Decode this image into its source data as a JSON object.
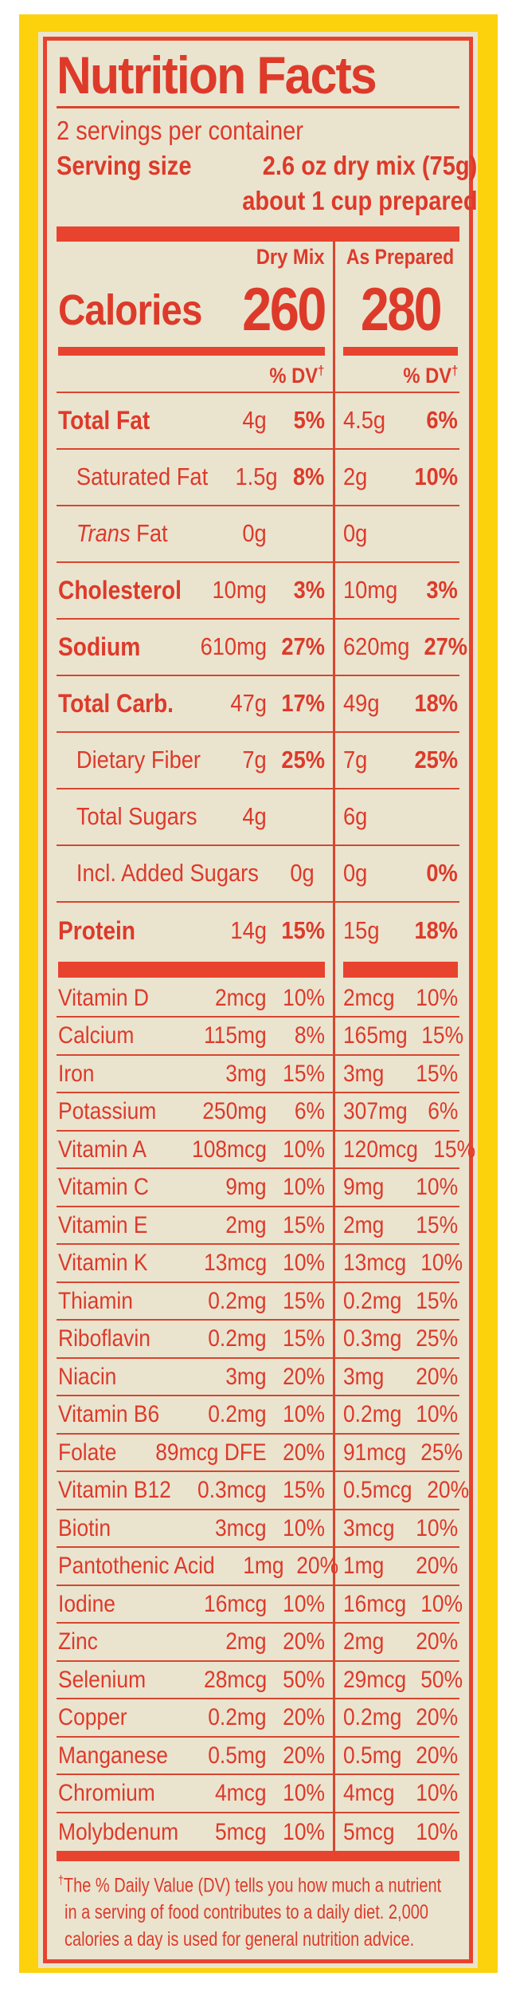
{
  "colors": {
    "red": "#dd3a2a",
    "red_bar": "#e8432f",
    "yellow": "#fcd20d",
    "cream": "#eae4cf",
    "page_background": "#ffffff"
  },
  "label": {
    "title": "Nutrition Facts",
    "servings_per_container": "2 servings per container",
    "serving_size": {
      "label": "Serving size",
      "value": "2.6 oz dry mix (75g)",
      "note": "about 1 cup prepared"
    },
    "columns": {
      "dry": "Dry Mix",
      "prepared": "As Prepared"
    },
    "calories": {
      "label": "Calories",
      "dry": "260",
      "prepared": "280"
    },
    "dv_header": "% DV",
    "dagger": "†",
    "nutrients": [
      {
        "name": "Total Fat",
        "bold": true,
        "dry": "4g",
        "dry_dv": "5%",
        "prep": "4.5g",
        "prep_dv": "6%"
      },
      {
        "name": "Saturated Fat",
        "indent": true,
        "dry": "1.5g",
        "dry_dv": "8%",
        "prep": "2g",
        "prep_dv": "10%"
      },
      {
        "name_italic": "Trans",
        "name": " Fat",
        "indent": true,
        "dry": "0g",
        "dry_dv": "",
        "prep": "0g",
        "prep_dv": ""
      },
      {
        "name": "Cholesterol",
        "bold": true,
        "dry": "10mg",
        "dry_dv": "3%",
        "prep": "10mg",
        "prep_dv": "3%"
      },
      {
        "name": "Sodium",
        "bold": true,
        "dry": "610mg",
        "dry_dv": "27%",
        "prep": "620mg",
        "prep_dv": "27%"
      },
      {
        "name": "Total Carb.",
        "bold": true,
        "dry": "47g",
        "dry_dv": "17%",
        "prep": "49g",
        "prep_dv": "18%"
      },
      {
        "name": "Dietary Fiber",
        "indent": true,
        "dry": "7g",
        "dry_dv": "25%",
        "prep": "7g",
        "prep_dv": "25%"
      },
      {
        "name": "Total Sugars",
        "indent": true,
        "dry": "4g",
        "dry_dv": "",
        "prep": "6g",
        "prep_dv": ""
      },
      {
        "name": "Incl. Added Sugars",
        "indent": true,
        "dry": "0g",
        "dry_dv": "",
        "prep": "0g",
        "prep_dv": "0%"
      },
      {
        "name": "Protein",
        "bold": true,
        "dry": "14g",
        "dry_dv": "15%",
        "prep": "15g",
        "prep_dv": "18%"
      }
    ],
    "vitamins": [
      {
        "name": "Vitamin D",
        "dry": "2mcg",
        "dry_dv": "10%",
        "prep": "2mcg",
        "prep_dv": "10%"
      },
      {
        "name": "Calcium",
        "dry": "115mg",
        "dry_dv": "8%",
        "prep": "165mg",
        "prep_dv": "15%"
      },
      {
        "name": "Iron",
        "dry": "3mg",
        "dry_dv": "15%",
        "prep": "3mg",
        "prep_dv": "15%"
      },
      {
        "name": "Potassium",
        "dry": "250mg",
        "dry_dv": "6%",
        "prep": "307mg",
        "prep_dv": "6%"
      },
      {
        "name": "Vitamin A",
        "dry": "108mcg",
        "dry_dv": "10%",
        "prep": "120mcg",
        "prep_dv": "15%"
      },
      {
        "name": "Vitamin C",
        "dry": "9mg",
        "dry_dv": "10%",
        "prep": "9mg",
        "prep_dv": "10%"
      },
      {
        "name": "Vitamin E",
        "dry": "2mg",
        "dry_dv": "15%",
        "prep": "2mg",
        "prep_dv": "15%"
      },
      {
        "name": "Vitamin K",
        "dry": "13mcg",
        "dry_dv": "10%",
        "prep": "13mcg",
        "prep_dv": "10%"
      },
      {
        "name": "Thiamin",
        "dry": "0.2mg",
        "dry_dv": "15%",
        "prep": "0.2mg",
        "prep_dv": "15%"
      },
      {
        "name": "Riboflavin",
        "dry": "0.2mg",
        "dry_dv": "15%",
        "prep": "0.3mg",
        "prep_dv": "25%"
      },
      {
        "name": "Niacin",
        "dry": "3mg",
        "dry_dv": "20%",
        "prep": "3mg",
        "prep_dv": "20%"
      },
      {
        "name": "Vitamin B6",
        "dry": "0.2mg",
        "dry_dv": "10%",
        "prep": "0.2mg",
        "prep_dv": "10%"
      },
      {
        "name": "Folate",
        "dry": "89mcg DFE",
        "dry_dv": "20%",
        "prep": "91mcg",
        "prep_dv": "25%"
      },
      {
        "name": "Vitamin B12",
        "dry": "0.3mcg",
        "dry_dv": "15%",
        "prep": "0.5mcg",
        "prep_dv": "20%"
      },
      {
        "name": "Biotin",
        "dry": "3mcg",
        "dry_dv": "10%",
        "prep": "3mcg",
        "prep_dv": "10%"
      },
      {
        "name": "Pantothenic Acid",
        "dry": "1mg",
        "dry_dv": "20%",
        "prep": "1mg",
        "prep_dv": "20%"
      },
      {
        "name": "Iodine",
        "dry": "16mcg",
        "dry_dv": "10%",
        "prep": "16mcg",
        "prep_dv": "10%"
      },
      {
        "name": "Zinc",
        "dry": "2mg",
        "dry_dv": "20%",
        "prep": "2mg",
        "prep_dv": "20%"
      },
      {
        "name": "Selenium",
        "dry": "28mcg",
        "dry_dv": "50%",
        "prep": "29mcg",
        "prep_dv": "50%"
      },
      {
        "name": "Copper",
        "dry": "0.2mg",
        "dry_dv": "20%",
        "prep": "0.2mg",
        "prep_dv": "20%"
      },
      {
        "name": "Manganese",
        "dry": "0.5mg",
        "dry_dv": "20%",
        "prep": "0.5mg",
        "prep_dv": "20%"
      },
      {
        "name": "Chromium",
        "dry": "4mcg",
        "dry_dv": "10%",
        "prep": "4mcg",
        "prep_dv": "10%"
      },
      {
        "name": "Molybdenum",
        "dry": "5mcg",
        "dry_dv": "10%",
        "prep": "5mcg",
        "prep_dv": "10%"
      }
    ],
    "footnote_lines": [
      "The % Daily Value (DV) tells you how much a nutrient",
      "in a serving of food contributes to a daily diet. 2,000",
      "calories a day is used for general nutrition advice."
    ]
  }
}
